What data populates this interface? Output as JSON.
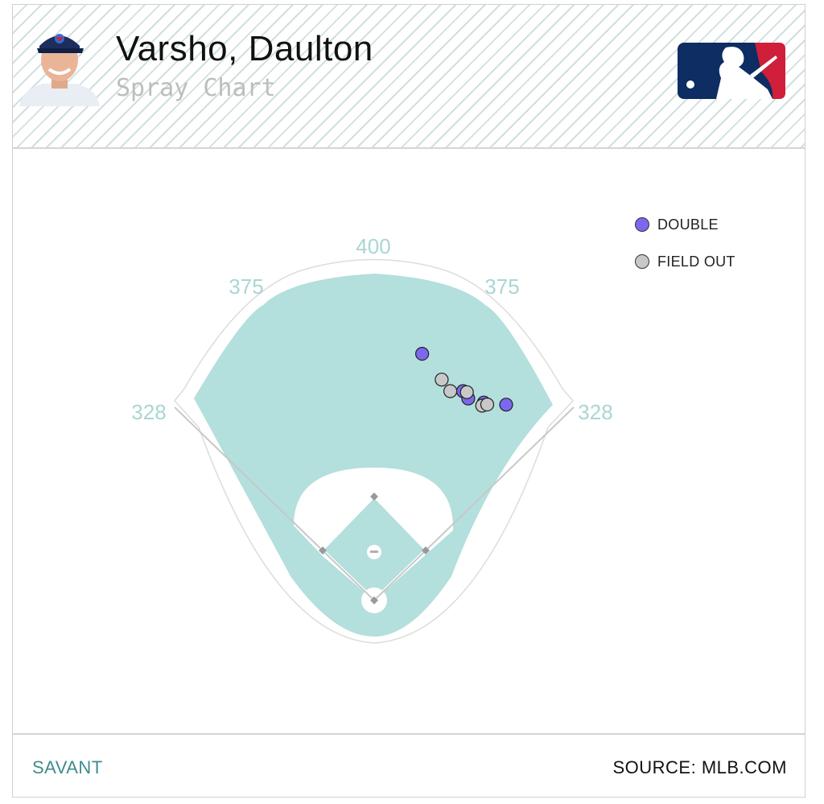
{
  "header": {
    "player_name": "Varsho, Daulton",
    "subtitle": "Spray Chart"
  },
  "footer": {
    "left_label": "SAVANT",
    "right_label": "SOURCE: MLB.COM"
  },
  "colors": {
    "double": "#7b68ee",
    "field_out": "#c8c8c8",
    "field_fill": "#b3dfdc",
    "distance_label": "#a9d6d3",
    "accent": "#3f8c8c"
  },
  "icons": {
    "avatar": "player-headshot",
    "logo": "mlb-logo"
  },
  "chart_data": {
    "type": "scatter",
    "title": "Spray Chart",
    "distance_labels": {
      "left_foul_line": "328",
      "left_center": "375",
      "center": "400",
      "right_center": "375",
      "right_foul_line": "328"
    },
    "legend": [
      {
        "label": "DOUBLE",
        "type": "double"
      },
      {
        "label": "FIELD OUT",
        "type": "field_out"
      }
    ],
    "series": [
      {
        "name": "DOUBLE",
        "points": [
          {
            "spray_angle": 11,
            "distance": 432
          },
          {
            "spray_angle": 23,
            "distance": 391
          },
          {
            "spray_angle": 25,
            "distance": 383
          },
          {
            "spray_angle": 29,
            "distance": 389
          },
          {
            "spray_angle": 34,
            "distance": 406
          }
        ]
      },
      {
        "name": "FIELD OUT",
        "points": [
          {
            "spray_angle": 17,
            "distance": 397
          },
          {
            "spray_angle": 20,
            "distance": 383
          },
          {
            "spray_angle": 24,
            "distance": 392
          },
          {
            "spray_angle": 29,
            "distance": 383
          },
          {
            "spray_angle": 30,
            "distance": 389
          }
        ]
      }
    ]
  }
}
